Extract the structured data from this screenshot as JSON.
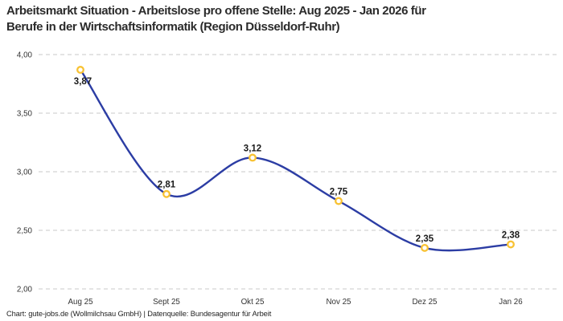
{
  "title": {
    "line1": "Arbeitsmarkt Situation - Arbeitslose pro offene Stelle: Aug 2025 - Jan 2026 für",
    "line2": "Berufe in der Wirtschaftsinformatik (Region Düsseldorf-Ruhr)"
  },
  "footer": "Chart: gute-jobs.de (Wollmilchsau GmbH) | Datenquelle: Bundesagentur für Arbeit",
  "chart_data": {
    "type": "line",
    "title": "Arbeitsmarkt Situation - Arbeitslose pro offene Stelle: Aug 2025 - Jan 2026 für Berufe in der Wirtschaftsinformatik (Region Düsseldorf-Ruhr)",
    "categories": [
      "Aug 25",
      "Sept 25",
      "Okt 25",
      "Nov 25",
      "Dez 25",
      "Jan 26"
    ],
    "values": [
      3.87,
      2.81,
      3.12,
      2.75,
      2.35,
      2.38
    ],
    "value_labels": [
      "3,87",
      "2,81",
      "3,12",
      "2,75",
      "2,35",
      "2,38"
    ],
    "y_ticks": [
      {
        "value": 4.0,
        "label": "4,00"
      },
      {
        "value": 3.5,
        "label": "3,50"
      },
      {
        "value": 3.0,
        "label": "3,00"
      },
      {
        "value": 2.5,
        "label": "2,50"
      },
      {
        "value": 2.0,
        "label": "2,00"
      }
    ],
    "ylim": [
      2.0,
      4.0
    ],
    "xlabel": "",
    "ylabel": "",
    "grid": "horizontal-dashed",
    "legend": "none",
    "smooth": true,
    "colors": {
      "line": "#2c3da4",
      "marker_ring": "#f8c233",
      "marker_fill": "#ffffff",
      "gridline": "#c9c9c9",
      "tick_text": "#333333",
      "label_text": "#1a1a1a"
    }
  }
}
